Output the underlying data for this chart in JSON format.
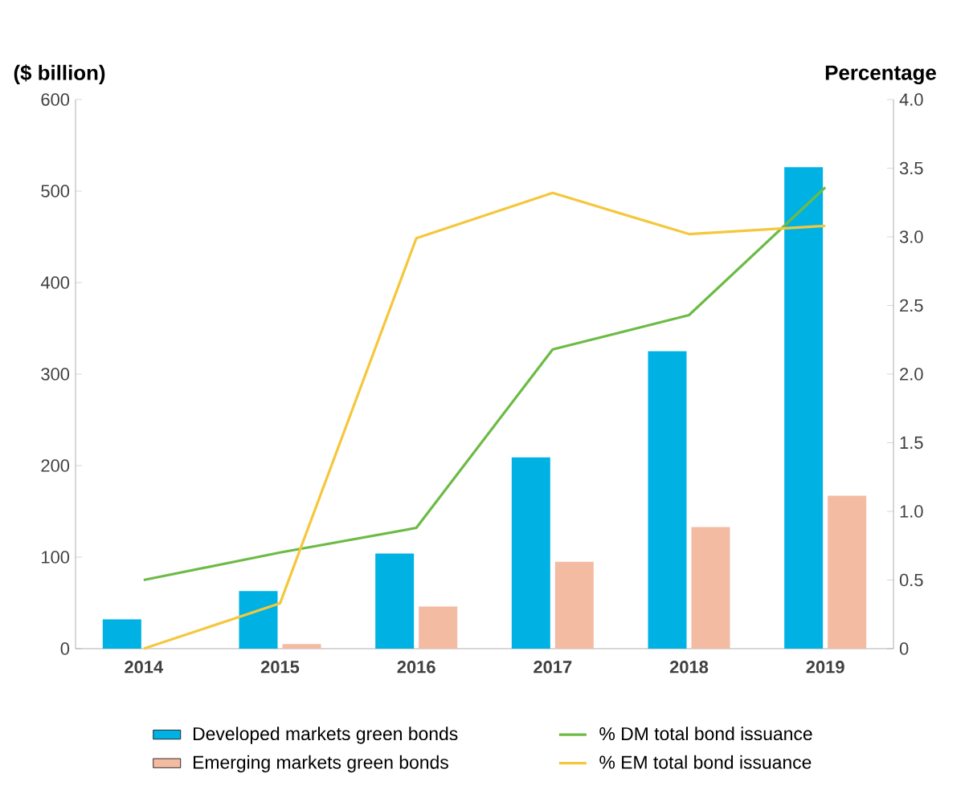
{
  "chart_data": {
    "type": "bar",
    "ylabel": "($ billion)",
    "y2label": "Percentage",
    "categories": [
      "2014",
      "2015",
      "2016",
      "2017",
      "2018",
      "2019"
    ],
    "series": [
      {
        "name": "Developed markets green bonds",
        "color": "#00b2e3",
        "values": [
          32,
          63,
          104,
          209,
          325,
          526
        ]
      },
      {
        "name": "Emerging markets green bonds",
        "color": "#f4bba3",
        "values": [
          null,
          5,
          46,
          95,
          133,
          167
        ]
      },
      {
        "name": "% DM total bond issuance",
        "type": "line",
        "axis": "y2",
        "color": "#6cbb45",
        "values": [
          0.5,
          0.7,
          0.88,
          2.18,
          2.43,
          3.36
        ]
      },
      {
        "name": "% EM total bond issuance",
        "type": "line",
        "axis": "y2",
        "color": "#f5c73c",
        "values": [
          0,
          0.33,
          2.99,
          3.32,
          3.02,
          3.08
        ]
      }
    ],
    "ylim": [
      0,
      600
    ],
    "yticks": [
      0,
      100,
      200,
      300,
      400,
      500,
      600
    ],
    "y2lim": [
      0,
      4
    ],
    "y2ticks": [
      0,
      0.5,
      {
        "value": 1,
        "label": "1.0"
      },
      1.5,
      {
        "value": 2,
        "label": "2.0"
      },
      2.5,
      {
        "value": 3,
        "label": "3.0"
      },
      3.5,
      {
        "value": 4,
        "label": "4.0"
      }
    ],
    "legend": "bottom",
    "grid": false
  }
}
